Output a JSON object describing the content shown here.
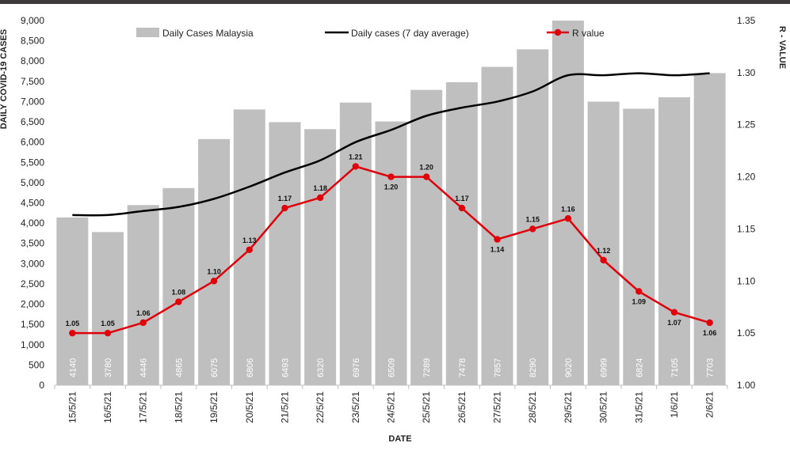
{
  "chart_data": {
    "type": "bar",
    "categories": [
      "15/5/21",
      "16/5/21",
      "17/5/21",
      "18/5/21",
      "19/5/21",
      "20/5/21",
      "21/5/21",
      "22/5/21",
      "23/5/21",
      "24/5/21",
      "25/5/21",
      "26/5/21",
      "27/5/21",
      "28/5/21",
      "29/5/21",
      "30/5/21",
      "31/5/21",
      "1/6/21",
      "2/6/21"
    ],
    "series": [
      {
        "name": "Daily Cases Malaysia",
        "type": "bar",
        "axis": "left",
        "color": "#bfbfbf",
        "values": [
          4140,
          3780,
          4446,
          4865,
          6075,
          6806,
          6493,
          6320,
          6976,
          6509,
          7289,
          7478,
          7857,
          8290,
          9020,
          6999,
          6824,
          7105,
          7703
        ]
      },
      {
        "name": "Daily cases (7 day average)",
        "type": "line",
        "axis": "left",
        "color": "#000000",
        "values": [
          4200,
          4200,
          4300,
          4400,
          4600,
          4900,
          5250,
          5550,
          6000,
          6300,
          6650,
          6850,
          7000,
          7250,
          7650,
          7650,
          7700,
          7650,
          7700
        ]
      },
      {
        "name": "R value",
        "type": "line",
        "axis": "right",
        "color": "#e0000a",
        "values": [
          1.05,
          1.05,
          1.06,
          1.08,
          1.1,
          1.13,
          1.17,
          1.18,
          1.21,
          1.2,
          1.2,
          1.17,
          1.14,
          1.15,
          1.16,
          1.12,
          1.09,
          1.07,
          1.06
        ]
      }
    ],
    "xlabel": "DATE",
    "ylabel": "DAILY COVID-19 CASES",
    "y2label": "R - VALUE",
    "ylim": [
      0,
      9000
    ],
    "y_ticks": [
      0,
      500,
      1000,
      1500,
      2000,
      2500,
      3000,
      3500,
      4000,
      4500,
      5000,
      5500,
      6000,
      6500,
      7000,
      7500,
      8000,
      8500,
      9000
    ],
    "y_tick_labels": [
      "0",
      "500",
      "1,000",
      "1,500",
      "2,000",
      "2,500",
      "3,000",
      "3,500",
      "4,000",
      "4,500",
      "5,000",
      "5,500",
      "6,000",
      "6,500",
      "7,000",
      "7,500",
      "8,000",
      "8,500",
      "9,000"
    ],
    "y2lim": [
      1.0,
      1.35
    ],
    "y2_ticks": [
      1.0,
      1.05,
      1.1,
      1.15,
      1.2,
      1.25,
      1.3,
      1.35
    ],
    "y2_tick_labels": [
      "1.00",
      "1.05",
      "1.10",
      "1.15",
      "1.20",
      "1.25",
      "1.30",
      "1.35"
    ],
    "bar_labels": [
      "4140",
      "3780",
      "4446",
      "4865",
      "6075",
      "6806",
      "6493",
      "6320",
      "6976",
      "6509",
      "7289",
      "7478",
      "7857",
      "8290",
      "9020",
      "6999",
      "6824",
      "7105",
      "7703"
    ],
    "r_labels": [
      "1.05",
      "1.05",
      "1.06",
      "1.08",
      "1.10",
      "1.13",
      "1.17",
      "1.18",
      "1.21",
      "1.20",
      "1.20",
      "1.17",
      "1.14",
      "1.15",
      "1.16",
      "1.12",
      "1.09",
      "1.07",
      "1.06"
    ],
    "legend_position": "top",
    "grid": false
  }
}
